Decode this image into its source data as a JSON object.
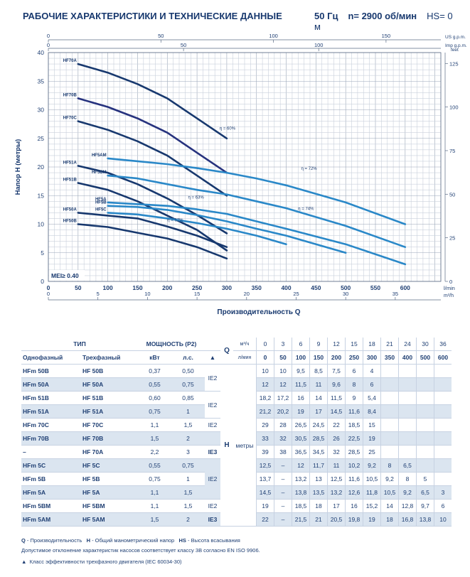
{
  "header": {
    "title": "РАБОЧИЕ ХАРАКТЕРИСТИКИ И ТЕХНИЧЕСКИЕ ДАННЫЕ",
    "frequency": "50 Гц",
    "speed": "n= 2900 об/мин",
    "hs": "HS= 0 м"
  },
  "chart_data": {
    "type": "line",
    "title": "",
    "xlabel": "Производительность Q",
    "ylabel": "Напор H (метры)",
    "xlim": [
      0,
      660
    ],
    "ylim": [
      0,
      40
    ],
    "grid": true,
    "x_unit": "l/min",
    "x_ticks": [
      0,
      50,
      100,
      150,
      200,
      250,
      300,
      350,
      400,
      450,
      500,
      550,
      600
    ],
    "y_ticks": [
      0,
      5,
      10,
      15,
      20,
      25,
      30,
      35,
      40
    ],
    "top_axis_1_label": "US g.p.m.",
    "top_axis_1_ticks": [
      "0",
      "50",
      "100",
      "150"
    ],
    "top_axis_2_label": "Imp g.p.m.",
    "top_axis_2_ticks": [
      "0",
      "50",
      "100"
    ],
    "right_axis_label": "feet",
    "right_axis_ticks": [
      "0",
      "25",
      "50",
      "75",
      "100",
      "125"
    ],
    "bottom_axis_2_label": "m³/h",
    "bottom_axis_2_ticks": [
      "0",
      "5",
      "10",
      "15",
      "20",
      "25",
      "30",
      "35"
    ],
    "mei_label": "MEI≥ 0.40",
    "efficiency_labels": [
      "η = 60%",
      "η = 72%",
      "η = 74%",
      "η = 63%",
      "η = 67%"
    ],
    "series": [
      {
        "name": "HF70A",
        "color": "#17386e",
        "x": [
          50,
          100,
          150,
          200,
          250,
          300
        ],
        "y": [
          38,
          36.5,
          34.5,
          32,
          28.5,
          25
        ]
      },
      {
        "name": "HF70B",
        "color": "#26327e",
        "x": [
          50,
          100,
          150,
          200,
          250,
          300
        ],
        "y": [
          32,
          30.5,
          28.5,
          26,
          22.5,
          19
        ]
      },
      {
        "name": "HF70C",
        "color": "#17386e",
        "x": [
          50,
          100,
          150,
          200,
          250,
          300
        ],
        "y": [
          28,
          26.5,
          24.5,
          22,
          18.5,
          15
        ]
      },
      {
        "name": "HF51A",
        "color": "#17386e",
        "x": [
          50,
          100,
          150,
          200,
          250,
          300
        ],
        "y": [
          20.2,
          19,
          17,
          14.5,
          11.6,
          8.4
        ]
      },
      {
        "name": "HF51B",
        "color": "#17386e",
        "x": [
          50,
          100,
          150,
          200,
          250,
          300
        ],
        "y": [
          17.2,
          16,
          14,
          11.5,
          9,
          5.4
        ]
      },
      {
        "name": "HF50A",
        "color": "#17386e",
        "x": [
          50,
          100,
          150,
          200,
          250,
          300
        ],
        "y": [
          12,
          11.5,
          11,
          9.6,
          8,
          6
        ]
      },
      {
        "name": "HF50B",
        "color": "#17386e",
        "x": [
          50,
          100,
          150,
          200,
          250,
          300
        ],
        "y": [
          10,
          9.5,
          8.5,
          7.5,
          6,
          4
        ]
      },
      {
        "name": "HF5AM",
        "color": "#2a88c8",
        "x": [
          100,
          150,
          200,
          250,
          300,
          350,
          400,
          500,
          600
        ],
        "y": [
          21.5,
          21,
          20.5,
          19.8,
          19,
          18,
          16.8,
          13.8,
          10
        ]
      },
      {
        "name": "HF5BM",
        "color": "#2a88c8",
        "x": [
          100,
          150,
          200,
          250,
          300,
          350,
          400,
          500,
          600
        ],
        "y": [
          18.5,
          18,
          17,
          16,
          15.2,
          14,
          12.8,
          9.7,
          6
        ]
      },
      {
        "name": "HF5A",
        "color": "#2a88c8",
        "x": [
          100,
          150,
          200,
          250,
          300,
          350,
          400,
          500,
          600
        ],
        "y": [
          13.8,
          13.5,
          13.2,
          12.6,
          11.8,
          10.5,
          9.2,
          6.5,
          3
        ]
      },
      {
        "name": "HF5B",
        "color": "#2a88c8",
        "x": [
          100,
          150,
          200,
          250,
          300,
          350,
          400,
          500
        ],
        "y": [
          13.2,
          13,
          12.5,
          11.6,
          10.5,
          9.2,
          8,
          5
        ]
      },
      {
        "name": "HF5C",
        "color": "#2a88c8",
        "x": [
          100,
          150,
          200,
          250,
          300,
          350,
          400
        ],
        "y": [
          12,
          11.7,
          11,
          10.2,
          9.2,
          8,
          6.5
        ]
      }
    ]
  },
  "table": {
    "type_header": "ТИП",
    "power_header": "МОЩНОСТЬ (P2)",
    "single_phase": "Однофазный",
    "three_phase": "Трехфазный",
    "kw": "кВт",
    "hp": "л.с.",
    "q_label": "Q",
    "unit_m3h": "м³/ч",
    "unit_lmin": "л/мин",
    "h_label": "H",
    "h_unit": "метры",
    "flow_m3h": [
      "0",
      "3",
      "6",
      "9",
      "12",
      "15",
      "18",
      "21",
      "24",
      "30",
      "36"
    ],
    "flow_lmin": [
      "0",
      "50",
      "100",
      "150",
      "200",
      "250",
      "300",
      "350",
      "400",
      "500",
      "600"
    ],
    "ie_labels": [
      "IE2",
      "IE2",
      "IE2",
      "IE3",
      "IE2",
      "IE2",
      "IE3"
    ],
    "rows": [
      {
        "single": "HFm 50B",
        "three": "HF 50B",
        "kw": "0,37",
        "hp": "0,50",
        "h": [
          "10",
          "10",
          "9,5",
          "8,5",
          "7,5",
          "6",
          "4",
          "",
          "",
          "",
          ""
        ]
      },
      {
        "single": "HFm 50A",
        "three": "HF 50A",
        "kw": "0,55",
        "hp": "0,75",
        "h": [
          "12",
          "12",
          "11,5",
          "11",
          "9,6",
          "8",
          "6",
          "",
          "",
          "",
          ""
        ]
      },
      {
        "single": "HFm 51B",
        "three": "HF 51B",
        "kw": "0,60",
        "hp": "0,85",
        "h": [
          "18,2",
          "17,2",
          "16",
          "14",
          "11,5",
          "9",
          "5,4",
          "",
          "",
          "",
          ""
        ]
      },
      {
        "single": "HFm 51A",
        "three": "HF 51A",
        "kw": "0,75",
        "hp": "1",
        "h": [
          "21,2",
          "20,2",
          "19",
          "17",
          "14,5",
          "11,6",
          "8,4",
          "",
          "",
          "",
          ""
        ]
      },
      {
        "single": "HFm 70C",
        "three": "HF 70C",
        "kw": "1,1",
        "hp": "1,5",
        "h": [
          "29",
          "28",
          "26,5",
          "24,5",
          "22",
          "18,5",
          "15",
          "",
          "",
          "",
          ""
        ]
      },
      {
        "single": "HFm 70B",
        "three": "HF 70B",
        "kw": "1,5",
        "hp": "2",
        "h": [
          "33",
          "32",
          "30,5",
          "28,5",
          "26",
          "22,5",
          "19",
          "",
          "",
          "",
          ""
        ]
      },
      {
        "single": "–",
        "three": "HF 70A",
        "kw": "2,2",
        "hp": "3",
        "h": [
          "39",
          "38",
          "36,5",
          "34,5",
          "32",
          "28,5",
          "25",
          "",
          "",
          "",
          ""
        ]
      },
      {
        "single": "HFm 5C",
        "three": "HF 5C",
        "kw": "0,55",
        "hp": "0,75",
        "h": [
          "12,5",
          "–",
          "12",
          "11,7",
          "11",
          "10,2",
          "9,2",
          "8",
          "6,5",
          "",
          ""
        ]
      },
      {
        "single": "HFm 5B",
        "three": "HF 5B",
        "kw": "0,75",
        "hp": "1",
        "h": [
          "13,7",
          "–",
          "13,2",
          "13",
          "12,5",
          "11,6",
          "10,5",
          "9,2",
          "8",
          "5",
          ""
        ]
      },
      {
        "single": "HFm 5A",
        "three": "HF 5A",
        "kw": "1,1",
        "hp": "1,5",
        "h": [
          "14,5",
          "–",
          "13,8",
          "13,5",
          "13,2",
          "12,6",
          "11,8",
          "10,5",
          "9,2",
          "6,5",
          "3"
        ]
      },
      {
        "single": "HFm 5BM",
        "three": "HF 5BM",
        "kw": "1,1",
        "hp": "1,5",
        "h": [
          "19",
          "–",
          "18,5",
          "18",
          "17",
          "16",
          "15,2",
          "14",
          "12,8",
          "9,7",
          "6"
        ]
      },
      {
        "single": "HFm 5AM",
        "three": "HF 5AM",
        "kw": "1,5",
        "hp": "2",
        "h": [
          "22",
          "–",
          "21,5",
          "21",
          "20,5",
          "19,8",
          "19",
          "18",
          "16,8",
          "13,8",
          "10"
        ]
      }
    ]
  },
  "footer": {
    "legend_q": "Q",
    "legend_q_text": " - Производительность",
    "legend_h": "H",
    "legend_h_text": " - Общий манометрический напор",
    "legend_hs": "HS",
    "legend_hs_text": " - Высота всасывания",
    "tolerance": "Допустимое отклонение характеристик насосов соответствует классу 3B согласно EN ISO 9906.",
    "ie_note": "Класс эффективности трехфазного двигателя (IEC 60034-30)"
  }
}
